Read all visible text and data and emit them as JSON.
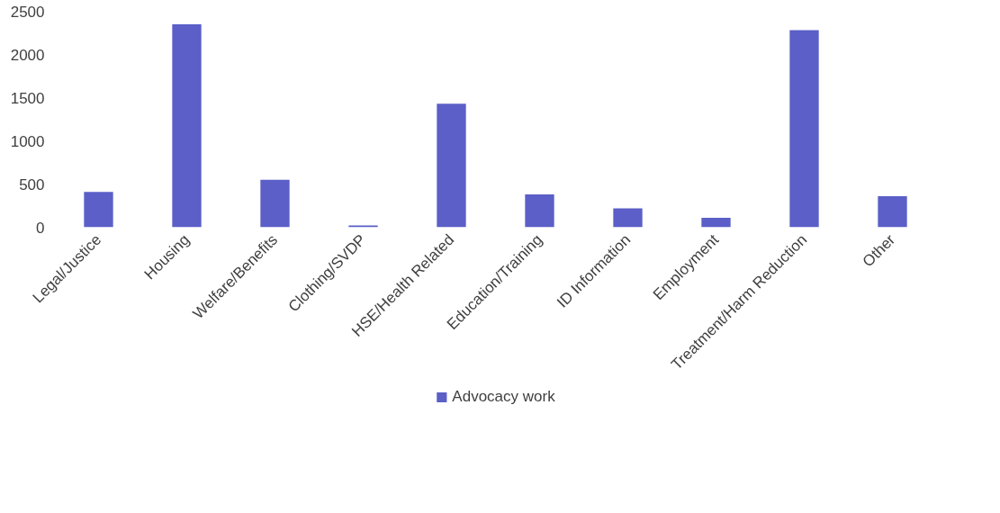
{
  "chart_data": {
    "type": "bar",
    "categories": [
      "Legal/Justice",
      "Housing",
      "Welfare/Benefits",
      "Clothing/SVDP",
      "HSE/Health Related",
      "Education/Training",
      "ID Information",
      "Employment",
      "Treatment/Harm Reduction",
      "Other"
    ],
    "series": [
      {
        "name": "Advocacy work",
        "color": "#5b5fc7",
        "values": [
          410,
          2350,
          550,
          20,
          1430,
          380,
          220,
          110,
          2280,
          360
        ]
      }
    ],
    "ylim": [
      0,
      2500
    ],
    "yticks": [
      0,
      500,
      1000,
      1500,
      2000,
      2500
    ],
    "grid": false,
    "legend": "bottom"
  }
}
